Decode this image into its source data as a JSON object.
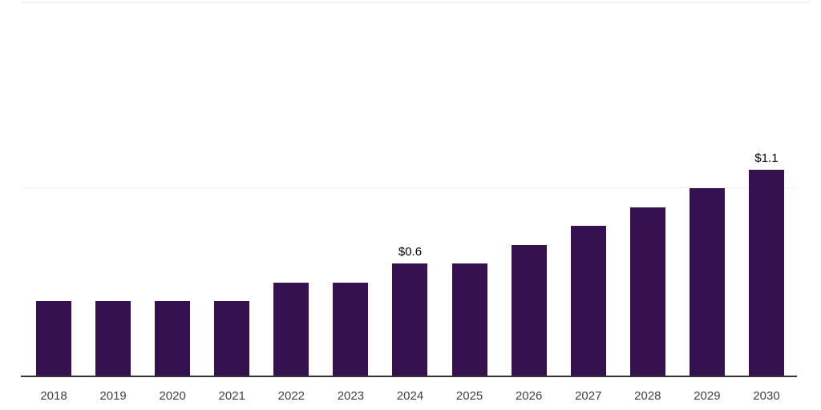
{
  "chart_data": {
    "type": "bar",
    "title": "",
    "xlabel": "",
    "ylabel": "",
    "categories": [
      "2018",
      "2019",
      "2020",
      "2021",
      "2022",
      "2023",
      "2024",
      "2025",
      "2026",
      "2027",
      "2028",
      "2029",
      "2030"
    ],
    "values": [
      0.4,
      0.4,
      0.4,
      0.4,
      0.5,
      0.5,
      0.6,
      0.6,
      0.7,
      0.8,
      0.9,
      1.0,
      1.1
    ],
    "unit": "$",
    "data_labels": [
      {
        "category": "2024",
        "text": "$0.6"
      },
      {
        "category": "2030",
        "text": "$1.1"
      }
    ],
    "ylim": [
      0,
      1.1
    ],
    "gridline_values": [
      1.0
    ],
    "grid": "single-horizontal",
    "legend": "none",
    "colors": {
      "bar": "#361150",
      "axis": "#333333",
      "gridline": "#f2f2f2",
      "top_border": "#f2f2f2",
      "tick_label": "#404040",
      "data_label": "#000000",
      "background": "#ffffff"
    }
  }
}
